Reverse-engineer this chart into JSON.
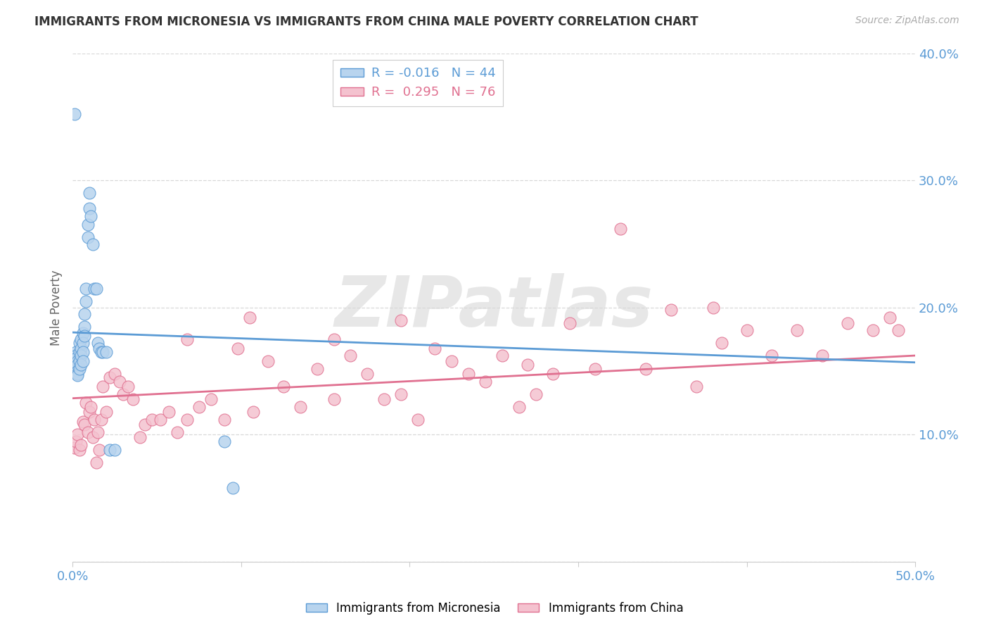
{
  "title": "IMMIGRANTS FROM MICRONESIA VS IMMIGRANTS FROM CHINA MALE POVERTY CORRELATION CHART",
  "source": "Source: ZipAtlas.com",
  "ylabel": "Male Poverty",
  "xlim": [
    0,
    0.5
  ],
  "ylim": [
    0,
    0.4
  ],
  "xticks": [
    0.0,
    0.1,
    0.2,
    0.3,
    0.4,
    0.5
  ],
  "yticks": [
    0.0,
    0.1,
    0.2,
    0.3,
    0.4
  ],
  "xtick_labels": [
    "0.0%",
    "",
    "",
    "",
    "",
    "50.0%"
  ],
  "ytick_labels": [
    "",
    "10.0%",
    "20.0%",
    "30.0%",
    "40.0%"
  ],
  "background_color": "#ffffff",
  "grid_color": "#d8d8d8",
  "watermark": "ZIPatlas",
  "micronesia_color": "#b8d4ee",
  "micronesia_line_color": "#5b9bd5",
  "micronesia_edge_color": "#5b9bd5",
  "china_color": "#f4c2cf",
  "china_line_color": "#e07090",
  "china_edge_color": "#e07090",
  "micronesia_R": -0.016,
  "micronesia_N": 44,
  "china_R": 0.295,
  "china_N": 76,
  "micronesia_x": [
    0.001,
    0.002,
    0.002,
    0.002,
    0.002,
    0.003,
    0.003,
    0.003,
    0.003,
    0.003,
    0.004,
    0.004,
    0.004,
    0.004,
    0.005,
    0.005,
    0.005,
    0.005,
    0.006,
    0.006,
    0.006,
    0.006,
    0.007,
    0.007,
    0.007,
    0.008,
    0.008,
    0.009,
    0.009,
    0.01,
    0.01,
    0.011,
    0.012,
    0.013,
    0.014,
    0.015,
    0.016,
    0.017,
    0.018,
    0.02,
    0.022,
    0.025,
    0.09,
    0.095
  ],
  "micronesia_y": [
    0.352,
    0.155,
    0.165,
    0.162,
    0.16,
    0.158,
    0.155,
    0.15,
    0.148,
    0.147,
    0.172,
    0.165,
    0.158,
    0.152,
    0.175,
    0.168,
    0.162,
    0.155,
    0.18,
    0.172,
    0.165,
    0.158,
    0.195,
    0.185,
    0.178,
    0.215,
    0.205,
    0.265,
    0.255,
    0.29,
    0.278,
    0.272,
    0.25,
    0.215,
    0.215,
    0.172,
    0.168,
    0.165,
    0.165,
    0.165,
    0.088,
    0.088,
    0.095,
    0.058
  ],
  "china_x": [
    0.001,
    0.002,
    0.003,
    0.004,
    0.005,
    0.006,
    0.007,
    0.008,
    0.009,
    0.01,
    0.011,
    0.012,
    0.013,
    0.014,
    0.015,
    0.016,
    0.017,
    0.018,
    0.02,
    0.022,
    0.025,
    0.028,
    0.03,
    0.033,
    0.036,
    0.04,
    0.043,
    0.047,
    0.052,
    0.057,
    0.062,
    0.068,
    0.075,
    0.082,
    0.09,
    0.098,
    0.107,
    0.116,
    0.125,
    0.135,
    0.145,
    0.155,
    0.165,
    0.175,
    0.185,
    0.195,
    0.205,
    0.215,
    0.225,
    0.235,
    0.245,
    0.255,
    0.265,
    0.275,
    0.285,
    0.295,
    0.31,
    0.325,
    0.34,
    0.355,
    0.37,
    0.385,
    0.4,
    0.415,
    0.43,
    0.445,
    0.46,
    0.475,
    0.485,
    0.49,
    0.068,
    0.105,
    0.155,
    0.195,
    0.27,
    0.38
  ],
  "china_y": [
    0.09,
    0.095,
    0.1,
    0.088,
    0.092,
    0.11,
    0.108,
    0.125,
    0.102,
    0.118,
    0.122,
    0.098,
    0.112,
    0.078,
    0.102,
    0.088,
    0.112,
    0.138,
    0.118,
    0.145,
    0.148,
    0.142,
    0.132,
    0.138,
    0.128,
    0.098,
    0.108,
    0.112,
    0.112,
    0.118,
    0.102,
    0.112,
    0.122,
    0.128,
    0.112,
    0.168,
    0.118,
    0.158,
    0.138,
    0.122,
    0.152,
    0.128,
    0.162,
    0.148,
    0.128,
    0.132,
    0.112,
    0.168,
    0.158,
    0.148,
    0.142,
    0.162,
    0.122,
    0.132,
    0.148,
    0.188,
    0.152,
    0.262,
    0.152,
    0.198,
    0.138,
    0.172,
    0.182,
    0.162,
    0.182,
    0.162,
    0.188,
    0.182,
    0.192,
    0.182,
    0.175,
    0.192,
    0.175,
    0.19,
    0.155,
    0.2
  ]
}
